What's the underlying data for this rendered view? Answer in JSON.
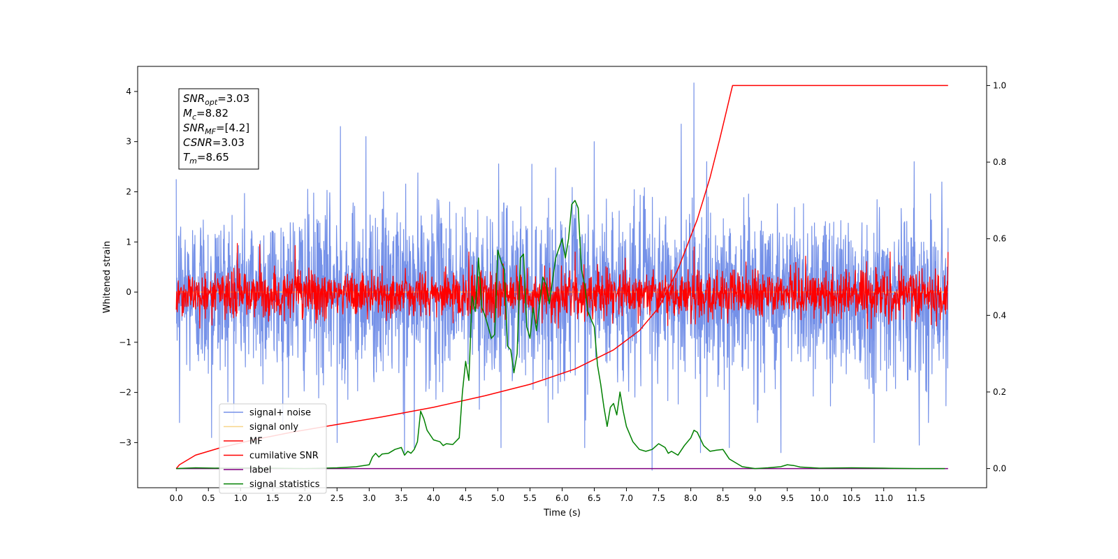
{
  "chart_data": {
    "type": "line",
    "xlabel": "Time (s)",
    "ylabel": "Whitened strain",
    "xlim": [
      -0.6,
      12.6
    ],
    "ylim": [
      -3.9,
      4.5
    ],
    "y2lim": [
      -0.05,
      1.05
    ],
    "x_ticks": [
      0.0,
      0.5,
      1.0,
      1.5,
      2.0,
      2.5,
      3.0,
      3.5,
      4.0,
      4.5,
      5.0,
      5.5,
      6.0,
      6.5,
      7.0,
      7.5,
      8.0,
      8.5,
      9.0,
      9.5,
      10.0,
      10.5,
      11.0,
      11.5
    ],
    "x_tick_labels": [
      "0.0",
      "0.5",
      "1.0",
      "1.5",
      "2.0",
      "2.5",
      "3.0",
      "3.5",
      "4.0",
      "4.5",
      "5.0",
      "5.5",
      "6.0",
      "6.5",
      "7.0",
      "7.5",
      "8.0",
      "8.5",
      "9.0",
      "9.5",
      "10.0",
      "10.5",
      "11.0",
      "11.5"
    ],
    "y_ticks": [
      -3,
      -2,
      -1,
      0,
      1,
      2,
      3,
      4
    ],
    "y_tick_labels": [
      "−3",
      "−2",
      "−1",
      "0",
      "1",
      "2",
      "3",
      "4"
    ],
    "y2_ticks": [
      0.0,
      0.2,
      0.4,
      0.6,
      0.8,
      1.0
    ],
    "y2_tick_labels": [
      "0.0",
      "0.2",
      "0.4",
      "0.6",
      "0.8",
      "1.0"
    ],
    "annotation": {
      "lines": [
        {
          "base": "SNR",
          "sub": "opt",
          "rest": "=3.03"
        },
        {
          "base": "M",
          "sub": "c",
          "rest": "=8.82"
        },
        {
          "base": "SNR",
          "sub": "MF",
          "rest": "=[4.2]"
        },
        {
          "base": "CSNR",
          "sub": "",
          "rest": "=3.03"
        },
        {
          "base": "T",
          "sub": "m",
          "rest": "=8.65"
        }
      ]
    },
    "legend": {
      "position": "lower-left",
      "entries": [
        {
          "label": "signal+ noise",
          "color": "#7591e8"
        },
        {
          "label": "signal only",
          "color": "#f7d68a"
        },
        {
          "label": "MF",
          "color": "#ff0000"
        },
        {
          "label": "cumilative SNR",
          "color": "#ff0000"
        },
        {
          "label": "label",
          "color": "#800080"
        },
        {
          "label": "signal statistics",
          "color": "#008000"
        }
      ]
    },
    "series": [
      {
        "name": "signal+ noise",
        "axis": "left",
        "color": "#7591e8",
        "render": "noise",
        "x_range": [
          0.0,
          12.0
        ],
        "center": 0.0,
        "sigma": 1.0,
        "peaks": [
          [
            0.0,
            2.25
          ],
          [
            2.55,
            3.3
          ],
          [
            2.95,
            3.1
          ],
          [
            6.5,
            3.0
          ],
          [
            8.05,
            4.17
          ],
          [
            7.85,
            3.35
          ]
        ],
        "troughs": [
          [
            0.05,
            -2.6
          ],
          [
            0.55,
            -2.9
          ],
          [
            2.5,
            -3.0
          ],
          [
            3.55,
            -3.2
          ],
          [
            3.7,
            -3.1
          ],
          [
            5.05,
            -3.1
          ],
          [
            6.35,
            -3.1
          ],
          [
            7.4,
            -3.55
          ],
          [
            8.15,
            -3.2
          ],
          [
            8.6,
            -3.1
          ],
          [
            9.4,
            -3.2
          ],
          [
            10.85,
            -3.0
          ],
          [
            11.55,
            -3.05
          ]
        ]
      },
      {
        "name": "signal only",
        "axis": "left",
        "color": "#f7d68a",
        "render": "flat",
        "x": [
          0.0,
          12.0
        ],
        "y": [
          0.0,
          0.0
        ]
      },
      {
        "name": "MF",
        "axis": "left",
        "color": "#ff0000",
        "render": "noise",
        "x_range": [
          0.0,
          12.0
        ],
        "center": -0.05,
        "sigma": 0.28,
        "peaks": [
          [
            0.0,
            0.98
          ],
          [
            0.95,
            0.97
          ],
          [
            1.3,
            0.95
          ],
          [
            1.85,
            0.93
          ],
          [
            4.55,
            0.8
          ],
          [
            6.2,
            0.8
          ],
          [
            8.05,
            0.9
          ],
          [
            11.1,
            0.8
          ],
          [
            12.0,
            0.8
          ]
        ],
        "troughs": [
          [
            0.0,
            -0.35
          ],
          [
            6.4,
            -0.45
          ],
          [
            11.9,
            -0.4
          ]
        ]
      },
      {
        "name": "cumilative SNR",
        "axis": "right",
        "color": "#ff0000",
        "render": "line",
        "x": [
          0.0,
          0.05,
          0.3,
          0.7,
          1.2,
          1.8,
          2.5,
          3.2,
          4.0,
          4.8,
          5.5,
          6.2,
          6.8,
          7.2,
          7.5,
          7.8,
          8.1,
          8.3,
          8.45,
          8.55,
          8.62,
          8.65,
          12.0
        ],
        "y": [
          0.0,
          0.01,
          0.035,
          0.055,
          0.075,
          0.095,
          0.115,
          0.135,
          0.16,
          0.19,
          0.22,
          0.26,
          0.31,
          0.36,
          0.42,
          0.52,
          0.65,
          0.76,
          0.86,
          0.93,
          0.98,
          1.0,
          1.0
        ]
      },
      {
        "name": "label",
        "axis": "right",
        "color": "#800080",
        "render": "line",
        "x": [
          0.0,
          12.0
        ],
        "y": [
          0.0,
          0.0
        ]
      },
      {
        "name": "signal statistics",
        "axis": "right",
        "color": "#008000",
        "render": "line",
        "x": [
          0.0,
          0.3,
          0.6,
          1.0,
          1.5,
          2.0,
          2.5,
          2.8,
          3.0,
          3.05,
          3.1,
          3.15,
          3.2,
          3.3,
          3.4,
          3.5,
          3.55,
          3.6,
          3.65,
          3.7,
          3.75,
          3.8,
          3.85,
          3.9,
          4.0,
          4.1,
          4.15,
          4.2,
          4.3,
          4.4,
          4.45,
          4.5,
          4.55,
          4.6,
          4.65,
          4.7,
          4.75,
          4.8,
          4.9,
          4.95,
          5.0,
          5.05,
          5.1,
          5.15,
          5.2,
          5.25,
          5.3,
          5.35,
          5.4,
          5.45,
          5.5,
          5.55,
          5.6,
          5.7,
          5.75,
          5.8,
          5.9,
          6.0,
          6.05,
          6.1,
          6.15,
          6.2,
          6.25,
          6.3,
          6.35,
          6.4,
          6.5,
          6.55,
          6.6,
          6.65,
          6.7,
          6.75,
          6.8,
          6.85,
          6.9,
          6.95,
          7.0,
          7.1,
          7.2,
          7.3,
          7.4,
          7.5,
          7.6,
          7.65,
          7.7,
          7.8,
          7.9,
          8.0,
          8.05,
          8.1,
          8.2,
          8.3,
          8.4,
          8.5,
          8.6,
          8.7,
          8.8,
          9.0,
          9.2,
          9.4,
          9.5,
          9.6,
          9.7,
          10.0,
          10.5,
          11.0,
          11.5,
          11.95
        ],
        "y": [
          0.0,
          0.002,
          0.001,
          0.002,
          0.001,
          0.0,
          0.002,
          0.005,
          0.01,
          0.03,
          0.04,
          0.03,
          0.038,
          0.04,
          0.05,
          0.055,
          0.035,
          0.045,
          0.04,
          0.05,
          0.07,
          0.15,
          0.13,
          0.1,
          0.075,
          0.07,
          0.06,
          0.065,
          0.063,
          0.08,
          0.2,
          0.28,
          0.23,
          0.45,
          0.41,
          0.55,
          0.42,
          0.4,
          0.34,
          0.35,
          0.57,
          0.54,
          0.52,
          0.32,
          0.31,
          0.25,
          0.3,
          0.55,
          0.56,
          0.37,
          0.34,
          0.42,
          0.36,
          0.5,
          0.48,
          0.43,
          0.55,
          0.6,
          0.55,
          0.6,
          0.69,
          0.7,
          0.68,
          0.52,
          0.48,
          0.41,
          0.37,
          0.27,
          0.22,
          0.16,
          0.11,
          0.16,
          0.17,
          0.14,
          0.2,
          0.15,
          0.11,
          0.07,
          0.05,
          0.045,
          0.05,
          0.065,
          0.055,
          0.04,
          0.045,
          0.035,
          0.06,
          0.08,
          0.1,
          0.095,
          0.06,
          0.045,
          0.048,
          0.05,
          0.025,
          0.015,
          0.005,
          0.0,
          0.002,
          0.005,
          0.01,
          0.008,
          0.004,
          0.001,
          0.002,
          0.001,
          0.0,
          0.0
        ]
      }
    ]
  }
}
